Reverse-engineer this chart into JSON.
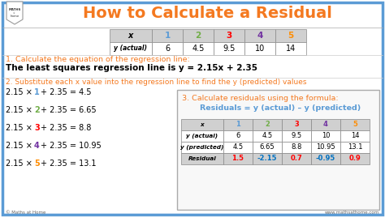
{
  "title": "How to Calculate a Residual",
  "title_color": "#F47920",
  "bg_color": "#FFFFFF",
  "border_color": "#5B9BD5",
  "step1_color": "#F47920",
  "step2_color": "#F47920",
  "step3_color": "#F47920",
  "step3_formula_color": "#5B9BD5",
  "x_vals": [
    "1",
    "2",
    "3",
    "4",
    "5"
  ],
  "x_colors": [
    "#5B9BD5",
    "#70AD47",
    "#FF0000",
    "#7030A0",
    "#FF8C00"
  ],
  "y_actual": [
    "6",
    "4.5",
    "9.5",
    "10",
    "14"
  ],
  "y_predicted": [
    "4.5",
    "6.65",
    "8.8",
    "10.95",
    "13.1"
  ],
  "residuals": [
    "1.5",
    "-2.15",
    "0.7",
    "-0.95",
    "0.9"
  ],
  "step1_text": "1. Calculate the equation of the regression line:",
  "step1_body": "The least squares regression line is y = 2.15x + 2.35",
  "step2_text": "2. Substitute each x value into the regression line to find the y (predicted) values",
  "step3_text": "3. Calculate residuals using the formula:",
  "step3_formula": "Residuals = y (actual) – y (predicted)",
  "footer_left": "© Maths at Home",
  "footer_right": "www.mathsathome.com",
  "calc_x_nums": [
    "1",
    "2",
    "3",
    "4",
    "5"
  ],
  "calc_results": [
    "4.5",
    "6.65",
    "8.8",
    "10.95",
    "13.1"
  ]
}
